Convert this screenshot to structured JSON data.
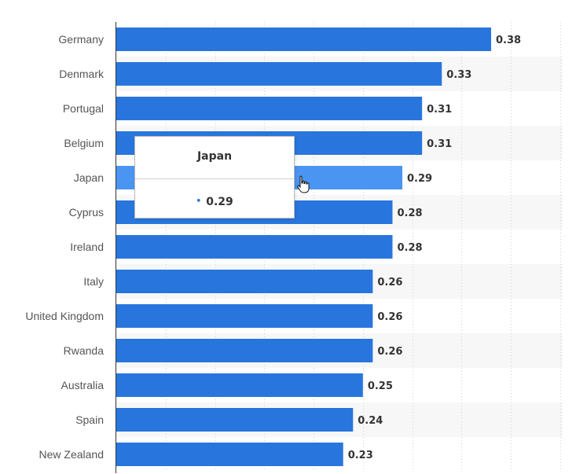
{
  "chart_data": {
    "type": "bar",
    "orientation": "horizontal",
    "categories": [
      "Germany",
      "Denmark",
      "Portugal",
      "Belgium",
      "Japan",
      "Cyprus",
      "Ireland",
      "Italy",
      "United Kingdom",
      "Rwanda",
      "Australia",
      "Spain",
      "New Zealand"
    ],
    "values": [
      0.38,
      0.33,
      0.31,
      0.31,
      0.29,
      0.28,
      0.28,
      0.26,
      0.26,
      0.26,
      0.25,
      0.24,
      0.23
    ],
    "value_labels": [
      "0.38",
      "0.33",
      "0.31",
      "0.31",
      "0.29",
      "0.28",
      "0.28",
      "0.26",
      "0.26",
      "0.26",
      "0.25",
      "0.24",
      "0.23"
    ],
    "xlim": [
      0,
      0.45
    ],
    "grid": true,
    "highlighted_category": "Japan",
    "colors": {
      "bar": "#2876dd",
      "bar_highlight": "#4a94f2",
      "stripe": "#f7f7f7",
      "grid": "#d0d0d0"
    }
  },
  "tooltip": {
    "title": "Japan",
    "bullet": "•",
    "value": "0.29"
  }
}
